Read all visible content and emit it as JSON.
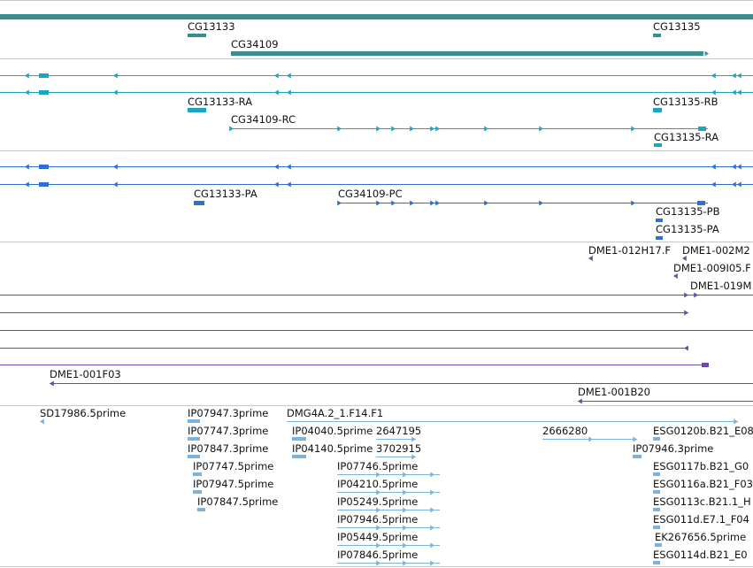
{
  "genes": {
    "CG13133": "CG13133",
    "CG13135": "CG13135",
    "CG34109": "CG34109"
  },
  "transcripts": {
    "CG13133_RA": "CG13133-RA",
    "CG34109_RC": "CG34109-RC",
    "CG13135_RB": "CG13135-RB",
    "CG13135_RA": "CG13135-RA"
  },
  "proteins": {
    "CG13133_PA": "CG13133-PA",
    "CG34109_PC": "CG34109-PC",
    "CG13135_PB": "CG13135-PB",
    "CG13135_PA": "CG13135-PA"
  },
  "probes": {
    "dme1_012h17": "DME1-012H17.F",
    "dme1_002m2": "DME1-002M2",
    "dme1_009i05": "DME1-009I05.F",
    "dme1_019m": "DME1-019M",
    "dme1_001f03": "DME1-001F03",
    "dme1_001b20": "DME1-001B20"
  },
  "ests": {
    "sd17986_5": "SD17986.5prime",
    "ip07947_3": "IP07947.3prime",
    "ip07747_3": "IP07747.3prime",
    "ip07847_3": "IP07847.3prime",
    "ip07747_5": "IP07747.5prime",
    "ip07947_5": "IP07947.5prime",
    "ip07847_5": "IP07847.5prime",
    "dmg4a2": "DMG4A.2_1.F14.F1",
    "ip04040_5": "IP04040.5prime",
    "n2647195": "2647195",
    "ip04140_5": "IP04140.5prime",
    "n3702915": "3702915",
    "ip07746_5": "IP07746.5prime",
    "ip04210_5": "IP04210.5prime",
    "ip05249_5": "IP05249.5prime",
    "ip07946_5": "IP07946.5prime",
    "ip05449_5": "IP05449.5prime",
    "ip07846_5": "IP07846.5prime",
    "n2666280": "2666280",
    "esg0120b": "ESG0120b.B21_E08",
    "ip07946_3": "IP07946.3prime",
    "esg0117b": "ESG0117b.B21_G0",
    "esg0116a": "ESG0116a.B21_F03",
    "esg0113c": "ESG0113c.B21.1_H",
    "esg011d": "ESG011d.E7.1_F04",
    "ek267656": "EK267656.5prime",
    "esg0114d": "ESG0114d.B21_E0"
  },
  "colors": {
    "gene": "#3a8e8e",
    "transcript": "#1ea3c2",
    "protein": "#2f6fd0",
    "probe": "#7048a8",
    "est": "#7ab4dc",
    "divider": "#c8c8c8"
  }
}
